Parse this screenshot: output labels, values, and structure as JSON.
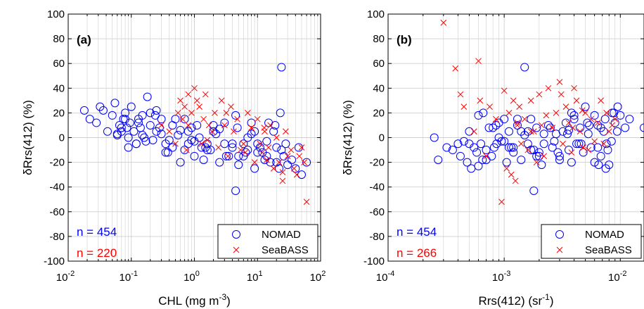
{
  "colors": {
    "nomad": "#0000ff",
    "seabass": "#ff0000",
    "grid": "#cfcfcf",
    "axis": "#000000"
  },
  "chart_data": [
    {
      "type": "scatter",
      "panel_label": "(a)",
      "xlabel": "CHL (mg m",
      "xlabel_sup": "-3",
      "xlabel_suffix": ")",
      "ylabel": "δRrs(412) (%)",
      "x_scale": "log",
      "xlim": [
        0.01,
        100
      ],
      "ylim": [
        -100,
        100
      ],
      "x_ticks": [
        {
          "value": 0.01,
          "base": "10",
          "exp": "-2"
        },
        {
          "value": 0.1,
          "base": "10",
          "exp": "-1"
        },
        {
          "value": 1,
          "base": "10",
          "exp": "0"
        },
        {
          "value": 10,
          "base": "10",
          "exp": "1"
        },
        {
          "value": 100,
          "base": "10",
          "exp": "2"
        }
      ],
      "y_ticks": [
        "-100",
        "-80",
        "-60",
        "-40",
        "-20",
        "0",
        "20",
        "40",
        "60",
        "80",
        "100"
      ],
      "grid": true,
      "legend_position": "bottom-right",
      "counts": [
        {
          "text": "n = 454",
          "series": "NOMAD"
        },
        {
          "text": "n = 220",
          "series": "SeaBASS"
        }
      ],
      "series": [
        {
          "name": "NOMAD",
          "marker": "circle",
          "x": [
            0.018,
            0.022,
            0.028,
            0.032,
            0.036,
            0.042,
            0.05,
            0.055,
            0.06,
            0.065,
            0.07,
            0.075,
            0.08,
            0.085,
            0.09,
            0.095,
            0.1,
            0.11,
            0.12,
            0.13,
            0.14,
            0.15,
            0.16,
            0.18,
            0.2,
            0.22,
            0.25,
            0.28,
            0.3,
            0.35,
            0.4,
            0.45,
            0.5,
            0.6,
            0.7,
            0.8,
            0.9,
            1.0,
            1.2,
            1.4,
            1.6,
            1.8,
            2.0,
            2.5,
            3.0,
            3.5,
            4.0,
            4.5,
            5,
            6,
            7,
            8,
            9,
            10,
            12,
            14,
            16,
            18,
            20,
            22,
            24,
            26,
            28,
            30,
            35,
            40,
            45,
            50,
            60,
            0.06,
            0.09,
            0.13,
            0.17,
            0.25,
            0.35,
            0.55,
            0.8,
            1.1,
            1.5,
            2.2,
            3.2,
            4.8,
            6.5,
            9,
            13,
            19,
            23,
            0.07,
            0.12,
            0.2,
            0.3,
            0.45,
            0.7,
            1.0,
            1.6,
            2.5,
            4,
            6,
            8,
            11,
            15,
            20,
            0.08,
            0.15,
            0.24,
            0.38,
            0.6,
            0.9,
            1.3,
            2,
            3,
            5,
            7,
            10,
            14,
            4.5,
            24
          ],
          "y": [
            22,
            15,
            12,
            25,
            22,
            5,
            18,
            28,
            3,
            10,
            5,
            15,
            20,
            8,
            0,
            12,
            25,
            5,
            -5,
            15,
            8,
            18,
            0,
            33,
            10,
            -2,
            22,
            8,
            15,
            -5,
            -2,
            10,
            15,
            -20,
            -10,
            5,
            8,
            -15,
            0,
            -18,
            -5,
            -10,
            5,
            -20,
            12,
            -15,
            -8,
            18,
            -22,
            -5,
            -10,
            12,
            -25,
            -5,
            -12,
            -15,
            -20,
            5,
            -8,
            -25,
            -10,
            -15,
            -5,
            -22,
            -18,
            -25,
            -8,
            -30,
            -20,
            2,
            -8,
            12,
            -3,
            5,
            -12,
            2,
            -5,
            10,
            -8,
            3,
            -15,
            8,
            -12,
            5,
            -18,
            10,
            20,
            8,
            -5,
            20,
            3,
            -8,
            15,
            -3,
            -10,
            7,
            -5,
            -15,
            3,
            -8,
            12,
            -20,
            15,
            2,
            18,
            -12,
            6,
            -2,
            -8,
            10,
            -5,
            -15,
            0,
            -12,
            -3,
            -43,
            57
          ]
        },
        {
          "name": "SeaBASS",
          "marker": "x",
          "x": [
            0.3,
            0.4,
            0.5,
            0.55,
            0.6,
            0.65,
            0.7,
            0.75,
            0.8,
            0.9,
            1.0,
            1.1,
            1.2,
            1.3,
            1.4,
            1.5,
            1.7,
            1.9,
            2.1,
            2.4,
            2.7,
            3.0,
            3.4,
            3.8,
            4.2,
            4.8,
            5.4,
            6,
            7,
            8,
            9,
            10,
            11,
            12,
            13,
            14,
            15,
            16,
            18,
            20,
            22,
            25,
            28,
            30,
            34,
            38,
            42,
            46,
            50,
            55,
            60,
            0.8,
            1.6,
            3.2,
            6.4,
            12.8,
            25
          ],
          "y": [
            10,
            5,
            -5,
            20,
            30,
            15,
            25,
            -10,
            35,
            20,
            40,
            30,
            25,
            -5,
            15,
            35,
            10,
            5,
            20,
            -8,
            30,
            10,
            -15,
            25,
            5,
            15,
            -10,
            -5,
            20,
            8,
            -20,
            15,
            -5,
            -12,
            5,
            -18,
            -8,
            10,
            -25,
            0,
            -20,
            -28,
            5,
            -15,
            -10,
            -25,
            -30,
            -15,
            -8,
            -20,
            -52,
            10,
            -2,
            20,
            -12,
            8,
            -35
          ]
        }
      ]
    },
    {
      "type": "scatter",
      "panel_label": "(b)",
      "xlabel": "Rrs(412) (sr",
      "xlabel_sup": "-1",
      "xlabel_suffix": ")",
      "ylabel": "δRrs(412) (%)",
      "x_scale": "log",
      "xlim": [
        0.0001,
        0.016
      ],
      "ylim": [
        -100,
        100
      ],
      "x_ticks": [
        {
          "value": 0.0001,
          "base": "10",
          "exp": "-4"
        },
        {
          "value": 0.001,
          "base": "10",
          "exp": "-3"
        },
        {
          "value": 0.01,
          "base": "10",
          "exp": "-2"
        }
      ],
      "y_ticks": [
        "-100",
        "-80",
        "-60",
        "-40",
        "-20",
        "0",
        "20",
        "40",
        "60",
        "80",
        "100"
      ],
      "grid": true,
      "legend_position": "bottom-right",
      "counts": [
        {
          "text": "n = 454",
          "series": "NOMAD"
        },
        {
          "text": "n = 266",
          "series": "SeaBASS"
        }
      ],
      "series": [
        {
          "name": "NOMAD",
          "marker": "circle",
          "x": [
            0.00025,
            0.00027,
            0.00032,
            0.00036,
            0.0004,
            0.00042,
            0.00045,
            0.00048,
            0.0005,
            0.00052,
            0.00055,
            0.00058,
            0.0006,
            0.00063,
            0.00066,
            0.0007,
            0.00074,
            0.00078,
            0.00082,
            0.00086,
            0.0009,
            0.00095,
            0.001,
            0.00105,
            0.0011,
            0.00115,
            0.0012,
            0.0013,
            0.0014,
            0.0015,
            0.0016,
            0.0017,
            0.0018,
            0.0019,
            0.002,
            0.0021,
            0.0022,
            0.0024,
            0.0026,
            0.0028,
            0.003,
            0.0032,
            0.0034,
            0.0036,
            0.0038,
            0.004,
            0.0042,
            0.0045,
            0.0048,
            0.005,
            0.0053,
            0.0056,
            0.006,
            0.0064,
            0.0068,
            0.0072,
            0.0076,
            0.008,
            0.0085,
            0.009,
            0.0095,
            0.01,
            0.011,
            0.012,
            0.016,
            0.0005,
            0.0007,
            0.0009,
            0.0012,
            0.0016,
            0.002,
            0.0025,
            0.003,
            0.0035,
            0.004,
            0.0046,
            0.0052,
            0.006,
            0.0068,
            0.0078,
            0.0088,
            0.0065,
            0.0075,
            0.0038,
            0.0027,
            0.0019,
            0.0014,
            0.0011,
            0.00085,
            0.00065,
            0.0006,
            0.0008,
            0.001,
            0.0013,
            0.0017,
            0.0022,
            0.0029,
            0.0036,
            0.0044,
            0.0054,
            0.0064,
            0.0074,
            0.0084,
            0.0094,
            0.0015,
            0.0018
          ],
          "y": [
            0,
            -18,
            -8,
            -10,
            -5,
            -15,
            -3,
            -20,
            5,
            -25,
            -8,
            -12,
            18,
            -5,
            20,
            -10,
            8,
            -15,
            -8,
            -5,
            12,
            -3,
            15,
            -20,
            5,
            -8,
            -12,
            10,
            -18,
            2,
            -5,
            15,
            -10,
            8,
            -15,
            -22,
            -5,
            10,
            -8,
            3,
            -18,
            5,
            12,
            -10,
            20,
            15,
            -5,
            8,
            -12,
            25,
            3,
            -8,
            18,
            10,
            -15,
            5,
            -5,
            -22,
            20,
            12,
            25,
            18,
            8,
            15,
            8,
            -5,
            -18,
            0,
            -8,
            5,
            -12,
            8,
            -15,
            3,
            18,
            -5,
            12,
            -20,
            8,
            -10,
            20,
            -22,
            -25,
            -20,
            -3,
            -15,
            5,
            -8,
            10,
            -18,
            -23,
            8,
            -3,
            15,
            -10,
            3,
            -12,
            6,
            -5,
            10,
            -8,
            15,
            -3,
            5,
            57,
            -43
          ]
        },
        {
          "name": "SeaBASS",
          "marker": "x",
          "x": [
            0.0003,
            0.00038,
            0.00042,
            0.0006,
            0.00062,
            0.00075,
            0.00085,
            0.00095,
            0.001,
            0.0011,
            0.00115,
            0.0012,
            0.00125,
            0.0013,
            0.00135,
            0.0014,
            0.0015,
            0.0016,
            0.0017,
            0.0018,
            0.0019,
            0.002,
            0.0021,
            0.0022,
            0.0024,
            0.0026,
            0.0028,
            0.003,
            0.0032,
            0.0034,
            0.0036,
            0.0038,
            0.004,
            0.0042,
            0.0045,
            0.0048,
            0.005,
            0.0053,
            0.0056,
            0.006,
            0.0064,
            0.0068,
            0.0072,
            0.0076,
            0.008,
            0.0085,
            0.009,
            0.00045,
            0.00055,
            0.0007,
            0.00105,
            0.0013,
            0.0017,
            0.0023,
            0.0031,
            0.0039,
            0.0047
          ],
          "y": [
            93,
            56,
            35,
            62,
            30,
            25,
            15,
            -52,
            38,
            20,
            -30,
            30,
            -35,
            10,
            25,
            -5,
            15,
            -10,
            30,
            5,
            -20,
            35,
            10,
            -15,
            40,
            8,
            20,
            45,
            -5,
            25,
            12,
            -12,
            40,
            30,
            5,
            -8,
            20,
            -10,
            15,
            -3,
            12,
            30,
            -5,
            20,
            5,
            10,
            15,
            25,
            5,
            -15,
            -25,
            12,
            5,
            18,
            35,
            8,
            22
          ]
        }
      ]
    }
  ]
}
